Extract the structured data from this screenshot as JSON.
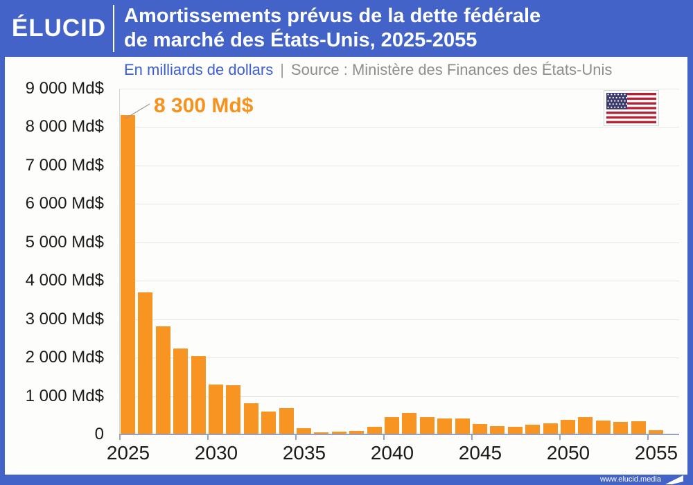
{
  "header": {
    "logo": "ÉLUCID",
    "title_line1": "Amortissements prévus de la dette fédérale",
    "title_line2": "de marché des États-Unis, 2025-2055"
  },
  "subtitle": {
    "unit": "En milliards de dollars",
    "separator": "|",
    "source": "Source : Ministère des Finances des États-Unis"
  },
  "footer": {
    "url": "www.elucid.media"
  },
  "colors": {
    "brand_blue": "#4363c8",
    "bar_orange": "#f89522",
    "annotation_orange": "#f6921e",
    "unit_text_blue": "#3c5ed1",
    "source_text_gray": "#8e8e8e",
    "flag_red": "#b22234",
    "flag_canton_blue": "#3c3b6e"
  },
  "chart_data": {
    "type": "bar",
    "title": "Amortissements prévus de la dette fédérale de marché des États-Unis, 2025-2055",
    "ylabel": "En milliards de dollars",
    "source": "Ministère des Finances des États-Unis",
    "x": [
      2025,
      2026,
      2027,
      2028,
      2029,
      2030,
      2031,
      2032,
      2033,
      2034,
      2035,
      2036,
      2037,
      2038,
      2039,
      2040,
      2041,
      2042,
      2043,
      2044,
      2045,
      2046,
      2047,
      2048,
      2049,
      2050,
      2051,
      2052,
      2053,
      2054,
      2055
    ],
    "values": [
      8300,
      3680,
      2800,
      2210,
      2020,
      1280,
      1260,
      800,
      580,
      660,
      145,
      40,
      55,
      70,
      175,
      440,
      550,
      430,
      400,
      390,
      250,
      200,
      185,
      235,
      275,
      365,
      425,
      335,
      305,
      320,
      95
    ],
    "ylim": [
      0,
      9000
    ],
    "ytick_values": [
      0,
      1000,
      2000,
      3000,
      4000,
      5000,
      6000,
      7000,
      8000,
      9000
    ],
    "ytick_labels": [
      "0",
      "1 000 Md$",
      "2 000 Md$",
      "3 000 Md$",
      "4 000 Md$",
      "5 000 Md$",
      "6 000 Md$",
      "7 000 Md$",
      "8 000 Md$",
      "9 000 Md$"
    ],
    "xtick_years": [
      2025,
      2030,
      2035,
      2040,
      2045,
      2050,
      2055
    ],
    "xtick_labels": [
      "2025",
      "2030",
      "2035",
      "2040",
      "2045",
      "2050",
      "2055"
    ],
    "grid": "horizontal",
    "legend": "none",
    "annotation": {
      "x": 2025,
      "value": 8300,
      "label": "8 300 Md$"
    }
  }
}
